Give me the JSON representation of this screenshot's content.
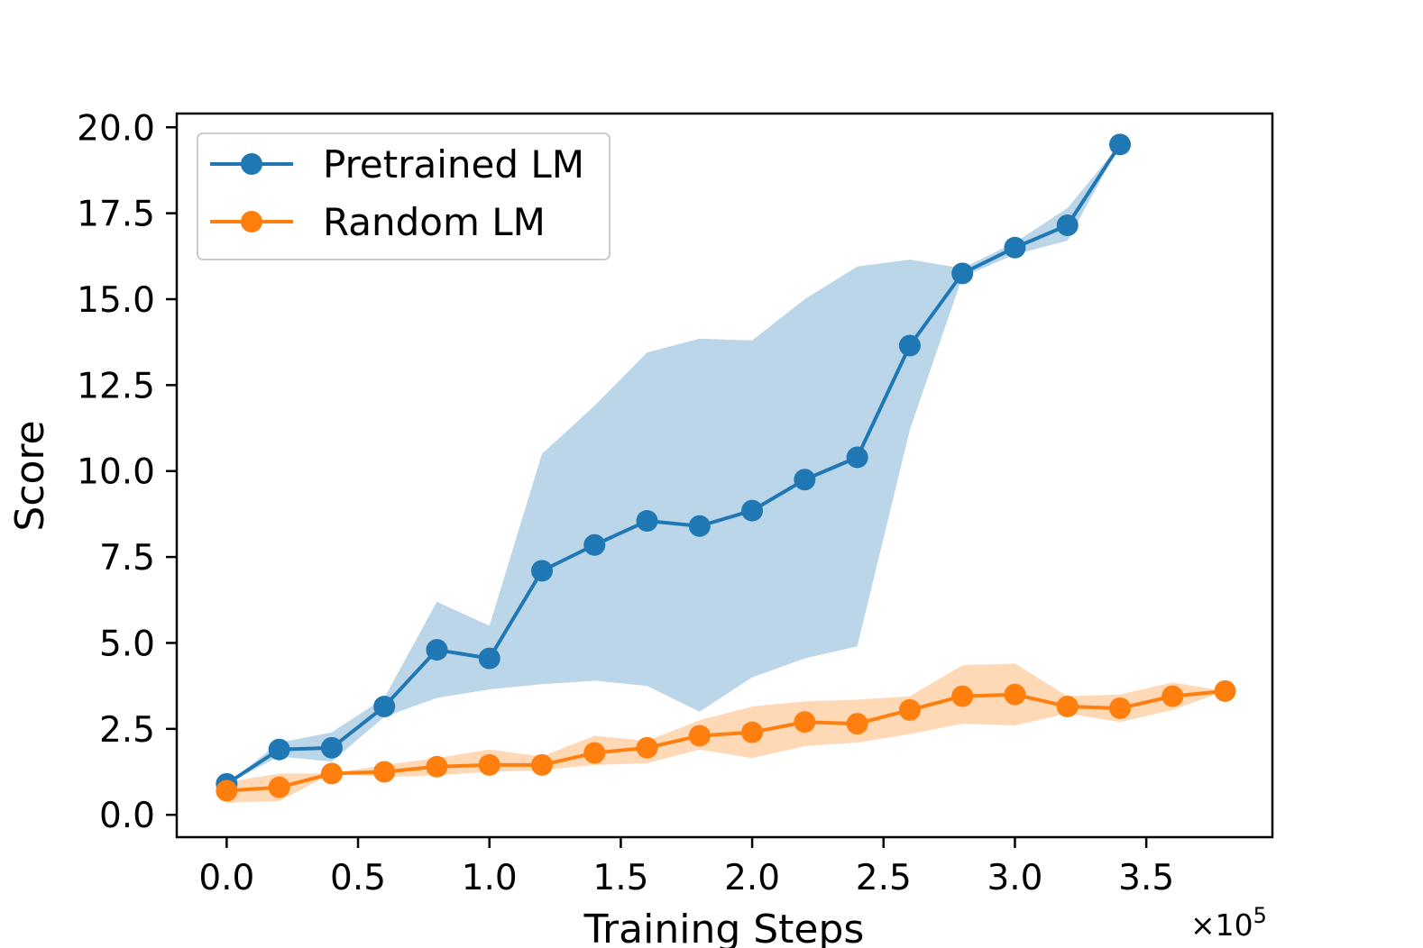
{
  "chart_data": {
    "type": "line",
    "title": "",
    "xlabel": "Training Steps",
    "ylabel": "Score",
    "x_offset_label": "×10",
    "x_offset_exponent": "5",
    "xlim": [
      -0.19,
      3.98
    ],
    "ylim": [
      -0.65,
      20.4
    ],
    "xticks": [
      0.0,
      0.5,
      1.0,
      1.5,
      2.0,
      2.5,
      3.0,
      3.5
    ],
    "xtick_labels": [
      "0.0",
      "0.5",
      "1.0",
      "1.5",
      "2.0",
      "2.5",
      "3.0",
      "3.5"
    ],
    "yticks": [
      0.0,
      2.5,
      5.0,
      7.5,
      10.0,
      12.5,
      15.0,
      17.5,
      20.0
    ],
    "ytick_labels": [
      "0.0",
      "2.5",
      "5.0",
      "7.5",
      "10.0",
      "12.5",
      "15.0",
      "17.5",
      "20.0"
    ],
    "grid": false,
    "legend_position": "top-left",
    "series": [
      {
        "name": "Pretrained LM",
        "color": "#1f77b4",
        "band_color": "#1f77b4",
        "x": [
          0.0,
          0.2,
          0.4,
          0.6,
          0.8,
          1.0,
          1.2,
          1.4,
          1.6,
          1.8,
          2.0,
          2.2,
          2.4,
          2.6,
          2.8,
          3.0,
          3.2,
          3.4
        ],
        "y": [
          0.9,
          1.9,
          1.95,
          3.15,
          4.8,
          4.55,
          7.1,
          7.85,
          8.55,
          8.4,
          8.85,
          9.75,
          10.4,
          13.65,
          15.75,
          16.5,
          17.15,
          19.5
        ],
        "upper": [
          0.9,
          2.1,
          2.4,
          3.4,
          6.2,
          5.5,
          10.5,
          11.9,
          13.45,
          13.85,
          13.8,
          15.0,
          15.95,
          16.15,
          15.9,
          16.65,
          17.65,
          19.5
        ],
        "lower": [
          0.9,
          1.7,
          1.55,
          2.85,
          3.4,
          3.65,
          3.8,
          3.9,
          3.75,
          3.0,
          4.0,
          4.55,
          4.9,
          11.2,
          15.65,
          16.3,
          16.7,
          19.5
        ]
      },
      {
        "name": "Random LM",
        "color": "#ff7f0e",
        "band_color": "#ff7f0e",
        "x": [
          0.0,
          0.2,
          0.4,
          0.6,
          0.8,
          1.0,
          1.2,
          1.4,
          1.6,
          1.8,
          2.0,
          2.2,
          2.4,
          2.6,
          2.8,
          3.0,
          3.2,
          3.4,
          3.6,
          3.8
        ],
        "y": [
          0.7,
          0.8,
          1.2,
          1.25,
          1.4,
          1.45,
          1.45,
          1.8,
          1.95,
          2.3,
          2.4,
          2.7,
          2.65,
          3.05,
          3.45,
          3.5,
          3.15,
          3.1,
          3.45,
          3.6
        ],
        "upper": [
          0.95,
          1.2,
          1.2,
          1.45,
          1.65,
          1.9,
          1.7,
          2.3,
          2.15,
          2.75,
          3.15,
          3.3,
          3.35,
          3.45,
          4.35,
          4.4,
          3.45,
          3.5,
          3.85,
          3.6
        ],
        "lower": [
          0.35,
          0.4,
          1.2,
          1.1,
          1.15,
          1.25,
          1.3,
          1.45,
          1.5,
          1.9,
          1.65,
          2.0,
          2.1,
          2.35,
          2.65,
          2.6,
          2.95,
          2.7,
          3.05,
          3.6
        ]
      }
    ]
  }
}
